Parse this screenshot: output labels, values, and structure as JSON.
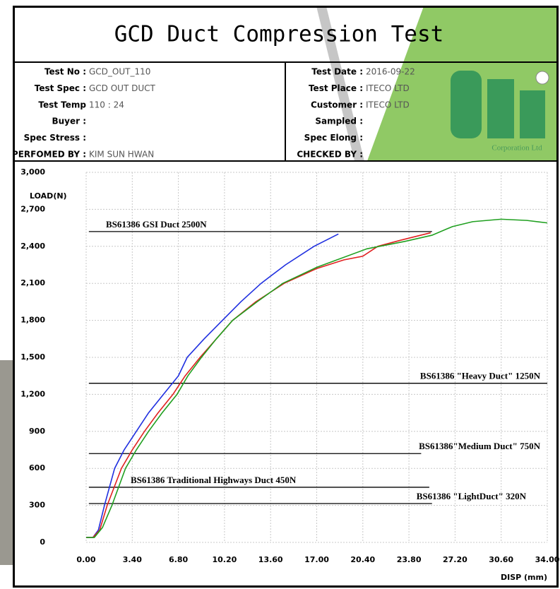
{
  "chart_data": {
    "type": "line",
    "title": "GCD Duct Compression Test",
    "info_left": [
      {
        "label": "Test No :",
        "value": "GCD_OUT_110"
      },
      {
        "label": "Test Spec :",
        "value": "GCD OUT DUCT"
      },
      {
        "label": "Test Temp",
        "value": "110 : 24"
      },
      {
        "label": "Buyer :"
      },
      {
        "label": "Spec Stress :"
      },
      {
        "label": "PERFOMED BY :",
        "value": "KIM SUN HWAN"
      }
    ],
    "info_right": [
      {
        "label": "Test Date :",
        "value": "2016-09-22"
      },
      {
        "label": "Test Place :",
        "value": "ITECO LTD"
      },
      {
        "label": "Customer :",
        "value": "ITECO LTD"
      },
      {
        "label": "Sampled :"
      },
      {
        "label": "Spec Elong :"
      },
      {
        "label": "CHECKED BY :"
      }
    ],
    "logo_text": "Corporation Ltd",
    "y_label": "LOAD(N)",
    "x_label": "DISP (mm)",
    "xlim": [
      0,
      34
    ],
    "ylim": [
      0,
      3000
    ],
    "xticks": [
      {
        "value": 0,
        "label": "0.00"
      },
      {
        "value": 3.4,
        "label": "3.40"
      },
      {
        "value": 6.8,
        "label": "6.80"
      },
      {
        "value": 10.2,
        "label": "10.20"
      },
      {
        "value": 13.6,
        "label": "13.60"
      },
      {
        "value": 17,
        "label": "17.00"
      },
      {
        "value": 20.4,
        "label": "20.40"
      },
      {
        "value": 23.8,
        "label": "23.80"
      },
      {
        "value": 27.2,
        "label": "27.20"
      },
      {
        "value": 30.6,
        "label": "30.60"
      },
      {
        "value": 34,
        "label": "34.00"
      }
    ],
    "yticks": [
      0,
      300,
      600,
      900,
      {
        "value": 1200,
        "label": "1,200"
      },
      {
        "value": 1500,
        "label": "1,500"
      },
      {
        "value": 1800,
        "label": "1,800"
      },
      {
        "value": 2100,
        "label": "2,100"
      },
      {
        "value": 2400,
        "label": "2,400"
      },
      {
        "value": 2700,
        "label": "2,700"
      },
      {
        "value": 3000,
        "label": "3,000"
      }
    ],
    "grid": true,
    "series": [
      {
        "color": "#1f2fe0",
        "x": [
          0,
          0.5,
          0.9,
          1.35,
          2.1,
          2.8,
          3.7,
          4.6,
          5.7,
          6.8,
          7.45,
          8.7,
          10.05,
          11.4,
          12.9,
          14.7,
          16.8,
          18.6
        ],
        "values": [
          40,
          40,
          100,
          300,
          600,
          750,
          900,
          1050,
          1200,
          1350,
          1500,
          1650,
          1800,
          1950,
          2100,
          2250,
          2400,
          2500
        ]
      },
      {
        "color": "#e02020",
        "x": [
          0,
          0.5,
          1.0,
          1.55,
          2.6,
          3.4,
          4.3,
          5.3,
          6.4,
          7.3,
          8.4,
          9.6,
          10.8,
          12.5,
          14.6,
          17,
          19,
          20.4,
          21.5,
          23.2,
          25.4
        ],
        "values": [
          40,
          40,
          100,
          300,
          600,
          750,
          900,
          1050,
          1200,
          1350,
          1500,
          1650,
          1800,
          1950,
          2100,
          2220,
          2290,
          2320,
          2400,
          2450,
          2510
        ]
      },
      {
        "color": "#20a020",
        "x": [
          0,
          0.6,
          1.2,
          1.9,
          2.9,
          3.7,
          4.6,
          5.6,
          6.7,
          7.5,
          8.5,
          9.6,
          10.8,
          12.6,
          14.5,
          17,
          20.7,
          23.5,
          25.5,
          27,
          28.5,
          30.6,
          32.5,
          34
        ],
        "values": [
          40,
          40,
          120,
          300,
          600,
          750,
          900,
          1050,
          1200,
          1350,
          1500,
          1650,
          1800,
          1950,
          2100,
          2230,
          2380,
          2440,
          2490,
          2560,
          2600,
          2620,
          2610,
          2590
        ]
      }
    ],
    "reference_lines": [
      {
        "label": "BS61386 GSI Duct   2500N",
        "value": 2520,
        "x_start": 0.2,
        "x_end": 25.5
      },
      {
        "label": "BS61386 \"Heavy Duct\" 1250N",
        "value": 1290,
        "x_start": 0.2,
        "x_end": 34
      },
      {
        "label": "BS61386\"Medium Duct\" 750N",
        "value": 720,
        "x_start": 0.2,
        "x_end": 24.7
      },
      {
        "label": "BS61386 Traditional Highways Duct 450N",
        "value": 447,
        "x_start": 0.2,
        "x_end": 25.3
      },
      {
        "label": "BS61386 \"LightDuct\" 320N",
        "value": 315,
        "x_start": 0.2,
        "x_end": 25.5
      }
    ]
  }
}
